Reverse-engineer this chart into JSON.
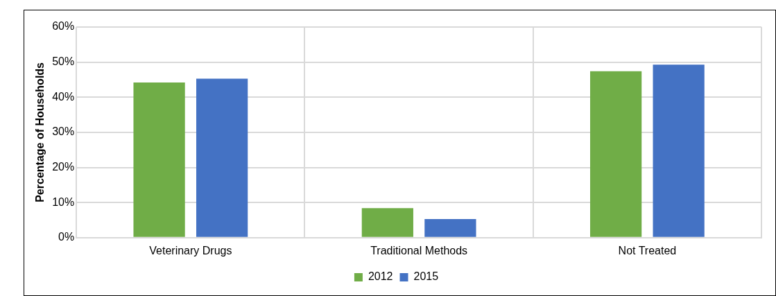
{
  "chart_data": {
    "type": "bar",
    "ylabel": "Percentage of Households",
    "categories": [
      "Veterinary Drugs",
      "Traditional Methods",
      "Not Treated"
    ],
    "series": [
      {
        "name": "2012",
        "color": "#70ad47",
        "values": [
          44.2,
          8.4,
          47.4
        ]
      },
      {
        "name": "2015",
        "color": "#4472c4",
        "values": [
          45.3,
          5.3,
          49.3
        ]
      }
    ],
    "ylim": [
      0,
      60
    ],
    "yticks": [
      {
        "value": 0,
        "label": "0%"
      },
      {
        "value": 10,
        "label": "10%"
      },
      {
        "value": 20,
        "label": "20%"
      },
      {
        "value": 30,
        "label": "30%"
      },
      {
        "value": 40,
        "label": "40%"
      },
      {
        "value": 50,
        "label": "50%"
      },
      {
        "value": 60,
        "label": "60%"
      }
    ],
    "grid": true,
    "legend": "bottom"
  }
}
